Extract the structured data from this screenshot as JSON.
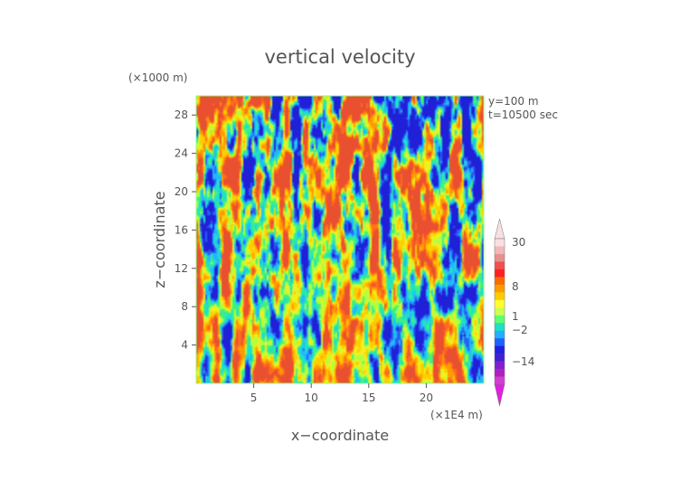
{
  "chart_data": {
    "type": "heatmap",
    "title": "vertical velocity",
    "xlabel": "x−coordinate",
    "ylabel": "z−coordinate",
    "x_unit": "(×1E4 m)",
    "y_unit": "(×1000 m)",
    "annotations": [
      "y=100 m",
      "t=10500 sec"
    ],
    "xlim": [
      0,
      25
    ],
    "ylim": [
      0,
      30
    ],
    "x_ticks": [
      5,
      10,
      15,
      20
    ],
    "x_tick_labels": [
      "5",
      "10",
      "15",
      "20"
    ],
    "y_ticks": [
      4,
      8,
      12,
      16,
      20,
      24,
      28
    ],
    "y_tick_labels": [
      "4",
      "8",
      "12",
      "16",
      "20",
      "24",
      "28"
    ],
    "colorbar": {
      "labels": [
        "30",
        "8",
        "1",
        "−2",
        "−14"
      ],
      "label_values": [
        30,
        8,
        1,
        -2,
        -14
      ],
      "extend": "both",
      "colors": [
        "#f8e0e0",
        "#f0b8b8",
        "#e89090",
        "#f05050",
        "#ff2020",
        "#ff6a00",
        "#ff9a00",
        "#ffcc00",
        "#ffff30",
        "#d0ff50",
        "#60ff70",
        "#20e0c0",
        "#20b0ff",
        "#2060ff",
        "#2020e0",
        "#4020d0",
        "#8020d0",
        "#b020c0",
        "#d040d0"
      ],
      "upper_extend_color": "#f8e0e0",
      "lower_extend_color": "#e020e0"
    },
    "field_palette": [
      "#2020d8",
      "#2a60f0",
      "#20b8ff",
      "#20e0c8",
      "#40f080",
      "#b0ff40",
      "#f0f020",
      "#ffcc00",
      "#ff9a00",
      "#ff6a20",
      "#e85030"
    ]
  }
}
